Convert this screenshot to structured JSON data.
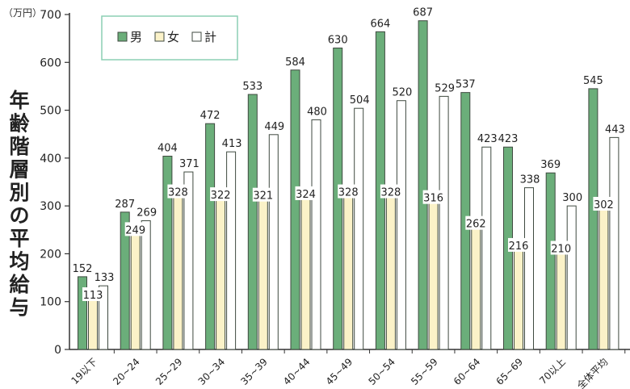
{
  "chart_data": {
    "type": "bar",
    "ylabel": "年齢階層別の平均給与",
    "yunit": "（万円）",
    "ylim": [
      0,
      700
    ],
    "yticks": [
      0,
      100,
      200,
      300,
      400,
      500,
      600,
      700
    ],
    "categories": [
      "19以下",
      "20~24",
      "25~29",
      "30~34",
      "35~39",
      "40~44",
      "45~49",
      "50~54",
      "55~59",
      "60~64",
      "65~69",
      "70以上",
      "全体平均"
    ],
    "series": [
      {
        "name": "男",
        "color": "#6bae7a",
        "values": [
          152,
          287,
          404,
          472,
          533,
          584,
          630,
          664,
          687,
          537,
          423,
          369,
          545
        ]
      },
      {
        "name": "女",
        "color": "#fbf2c8",
        "values": [
          113,
          249,
          328,
          322,
          321,
          324,
          328,
          328,
          316,
          262,
          216,
          210,
          302
        ]
      },
      {
        "name": "計",
        "color": "#ffffff",
        "values": [
          133,
          269,
          371,
          413,
          449,
          480,
          504,
          520,
          529,
          423,
          338,
          300,
          443
        ]
      }
    ],
    "legend_position": "top-left",
    "grid": false
  }
}
